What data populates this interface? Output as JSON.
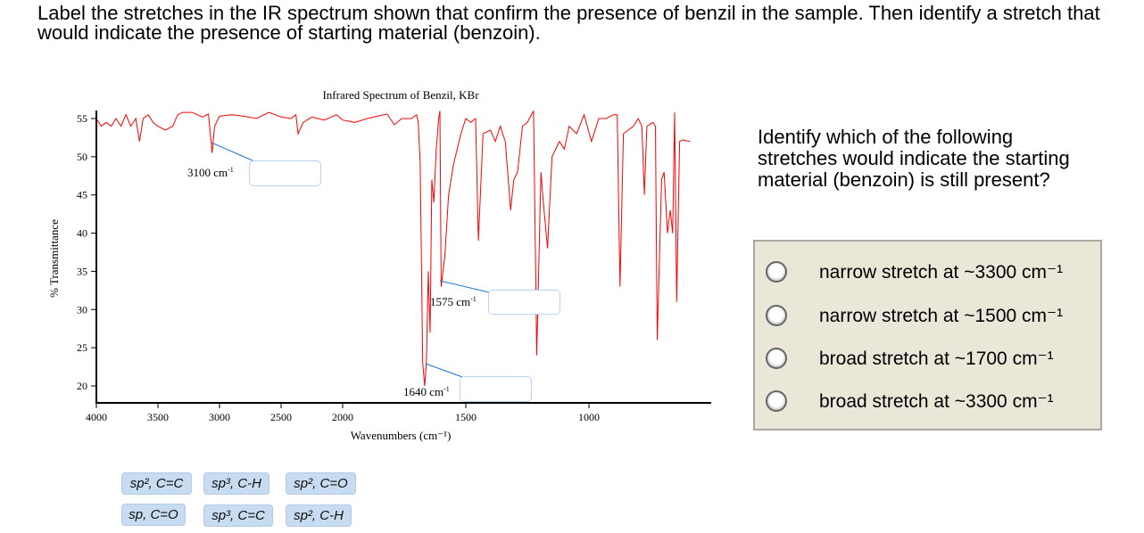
{
  "question": "Label the stretches in the IR spectrum shown that confirm the presence of benzil in the sample. Then identify a stretch that would indicate the presence of starting material (benzoin).",
  "chart_data": {
    "type": "line",
    "title": "Infrared Spectrum of Benzil, KBr",
    "xlabel": "Wavenumbers (cm⁻¹)",
    "ylabel": "% Transmittance",
    "xlim": [
      4000,
      500
    ],
    "ylim": [
      18,
      56
    ],
    "x_scale_note": "scale expands below 2000",
    "xticks": [
      "4000",
      "3500",
      "3000",
      "2500",
      "2000",
      "1500",
      "1000"
    ],
    "yticks": [
      "20",
      "25",
      "30",
      "35",
      "40",
      "45",
      "50",
      "55"
    ],
    "color": "#ff0000",
    "points": [
      [
        4000,
        55
      ],
      [
        3960,
        54
      ],
      [
        3920,
        54.5
      ],
      [
        3880,
        54
      ],
      [
        3840,
        55
      ],
      [
        3800,
        54
      ],
      [
        3760,
        55.5
      ],
      [
        3720,
        54
      ],
      [
        3680,
        55
      ],
      [
        3650,
        52
      ],
      [
        3620,
        55
      ],
      [
        3580,
        55.5
      ],
      [
        3540,
        54.5
      ],
      [
        3500,
        54
      ],
      [
        3440,
        53.5
      ],
      [
        3380,
        54
      ],
      [
        3340,
        55.5
      ],
      [
        3300,
        55.8
      ],
      [
        3220,
        55.8
      ],
      [
        3140,
        55.2
      ],
      [
        3090,
        55.6
      ],
      [
        3060,
        50.5
      ],
      [
        3040,
        54
      ],
      [
        3000,
        55.3
      ],
      [
        2900,
        55.5
      ],
      [
        2800,
        55.3
      ],
      [
        2700,
        55
      ],
      [
        2600,
        55.8
      ],
      [
        2500,
        55.2
      ],
      [
        2420,
        55
      ],
      [
        2380,
        55.5
      ],
      [
        2362,
        53
      ],
      [
        2320,
        54.5
      ],
      [
        2250,
        55.2
      ],
      [
        2150,
        54.8
      ],
      [
        2050,
        55.5
      ],
      [
        2000,
        54.8
      ],
      [
        1950,
        54.5
      ],
      [
        1900,
        55
      ],
      [
        1860,
        55.3
      ],
      [
        1820,
        55.6
      ],
      [
        1790,
        54.2
      ],
      [
        1760,
        55
      ],
      [
        1720,
        55
      ],
      [
        1700,
        55.5
      ],
      [
        1693,
        54.5
      ],
      [
        1685,
        49
      ],
      [
        1675,
        23
      ],
      [
        1667,
        20
      ],
      [
        1660,
        23
      ],
      [
        1652,
        35
      ],
      [
        1645,
        27
      ],
      [
        1638,
        47
      ],
      [
        1630,
        44
      ],
      [
        1620,
        51
      ],
      [
        1610,
        55
      ],
      [
        1605,
        56
      ],
      [
        1600,
        33
      ],
      [
        1585,
        37
      ],
      [
        1570,
        45
      ],
      [
        1550,
        49
      ],
      [
        1520,
        53
      ],
      [
        1500,
        55
      ],
      [
        1480,
        54.5
      ],
      [
        1460,
        55
      ],
      [
        1449,
        39
      ],
      [
        1430,
        53
      ],
      [
        1400,
        53.5
      ],
      [
        1380,
        52
      ],
      [
        1360,
        54
      ],
      [
        1340,
        52
      ],
      [
        1325,
        46
      ],
      [
        1318,
        43
      ],
      [
        1305,
        47
      ],
      [
        1290,
        48
      ],
      [
        1270,
        54
      ],
      [
        1250,
        54.5
      ],
      [
        1225,
        56
      ],
      [
        1212,
        24
      ],
      [
        1195,
        48
      ],
      [
        1185,
        44
      ],
      [
        1168,
        38
      ],
      [
        1150,
        50
      ],
      [
        1120,
        52
      ],
      [
        1100,
        51
      ],
      [
        1080,
        54
      ],
      [
        1050,
        53
      ],
      [
        1020,
        55.5
      ],
      [
        990,
        52
      ],
      [
        960,
        55
      ],
      [
        930,
        55
      ],
      [
        900,
        55.5
      ],
      [
        885,
        55.5
      ],
      [
        874,
        33
      ],
      [
        860,
        53
      ],
      [
        820,
        54
      ],
      [
        800,
        55
      ],
      [
        785,
        54
      ],
      [
        775,
        45
      ],
      [
        765,
        54
      ],
      [
        740,
        54.5
      ],
      [
        730,
        54
      ],
      [
        723,
        26
      ],
      [
        705,
        47
      ],
      [
        695,
        48
      ],
      [
        681,
        40
      ],
      [
        670,
        43
      ],
      [
        660,
        40
      ],
      [
        652,
        55.8
      ],
      [
        644,
        31
      ],
      [
        632,
        52
      ],
      [
        620,
        52.2
      ],
      [
        590,
        52
      ]
    ],
    "annotations": [
      {
        "wavenumber": 3100,
        "label": "3100 cm⁻¹"
      },
      {
        "wavenumber": 1575,
        "label": "1575 cm⁻¹"
      },
      {
        "wavenumber": 1640,
        "label": "1640 cm⁻¹"
      }
    ],
    "grid": false
  },
  "annotation_labels": {
    "a3100": "3100 cm",
    "a1575": "1575 cm",
    "a1640": "1640 cm",
    "sup": "-1"
  },
  "chips": [
    "sp², C=C",
    "sp³, C-H",
    "sp², C=O",
    "sp, C=O",
    "sp³, C=C",
    "sp², C-H"
  ],
  "side_question": "Identify which of the following stretches would indicate the starting material (benzoin) is still present?",
  "options": [
    "narrow stretch at ~3300 cm⁻¹",
    "narrow stretch at ~1500 cm⁻¹",
    "broad stretch at ~1700 cm⁻¹",
    "broad stretch at ~3300 cm⁻¹"
  ]
}
